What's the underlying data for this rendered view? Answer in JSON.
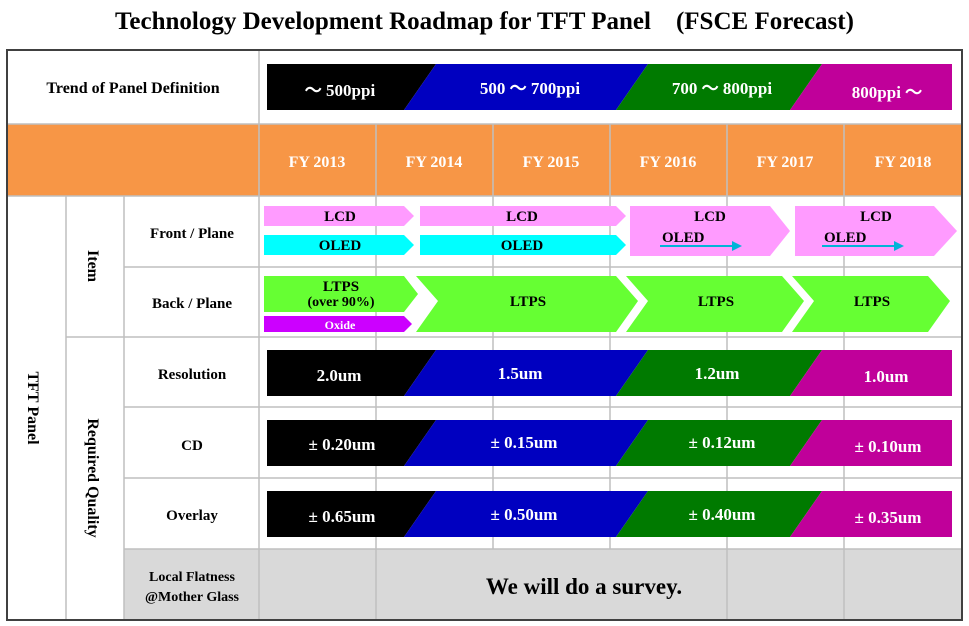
{
  "title": "Technology Development Roadmap for TFT Panel　(FSCE Forecast)",
  "header": {
    "trend_label": "Trend of Panel Definition",
    "ppi_stages": [
      {
        "label": "～ 500ppi",
        "color": "#000000"
      },
      {
        "label": "500 ～ 700ppi",
        "color": "#0000c0"
      },
      {
        "label": "700 ～ 800ppi",
        "color": "#007a00"
      },
      {
        "label": "800ppi ～",
        "color": "#c0009a"
      }
    ],
    "years": [
      "FY 2013",
      "FY 2014",
      "FY 2015",
      "FY 2016",
      "FY 2017",
      "FY 2018"
    ]
  },
  "rows": {
    "group_tft": "TFT Panel",
    "group_item": "Item",
    "group_quality": "Required Quality",
    "front_plane": "Front / Plane",
    "back_plane": "Back / Plane",
    "resolution": "Resolution",
    "cd": "CD",
    "overlay": "Overlay",
    "flatness_line1": "Local Flatness",
    "flatness_line2": "@Mother Glass"
  },
  "front_plane": {
    "lcd": "LCD",
    "oled": "OLED",
    "lcd_color": "#ff9bff",
    "oled_color": "#00ffff",
    "trend_arrow_color": "#00b4d8"
  },
  "back_plane": {
    "ltps": "LTPS",
    "ltps_note": "(over 90%)",
    "oxide": "Oxide",
    "ltps_color": "#66ff33",
    "oxide_color": "#cc00ff"
  },
  "quality_stages": {
    "colors": [
      "#000000",
      "#0000c0",
      "#007a00",
      "#c0009a"
    ],
    "resolution": [
      "2.0um",
      "1.5um",
      "1.2um",
      "1.0um"
    ],
    "cd": [
      "± 0.20um",
      "± 0.15um",
      "± 0.12um",
      "± 0.10um"
    ],
    "overlay": [
      "± 0.65um",
      "± 0.50um",
      "± 0.40um",
      "± 0.35um"
    ]
  },
  "survey_text": "We will do a survey.",
  "colors": {
    "year_band": "#f79646",
    "grid": "#bfbfbf",
    "survey_bg": "#d9d9d9"
  }
}
